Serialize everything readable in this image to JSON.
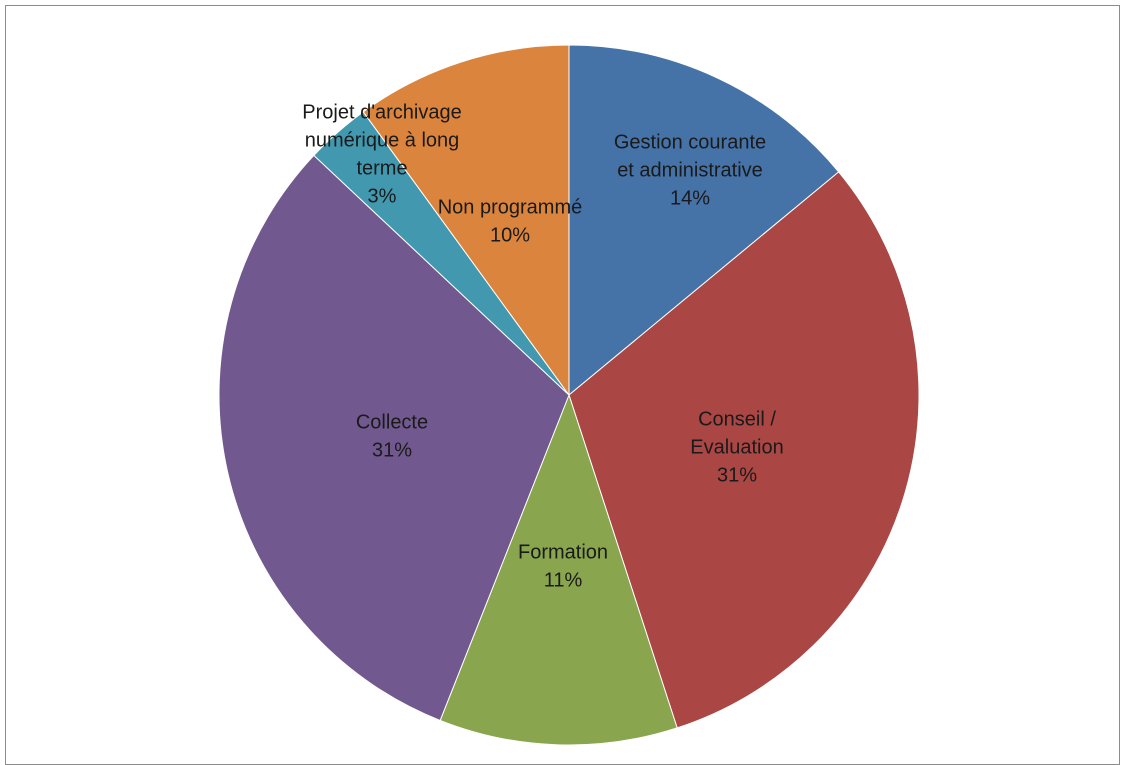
{
  "chart_data": {
    "type": "pie",
    "title": "",
    "slices": [
      {
        "label": [
          "Gestion courante",
          "et administrative"
        ],
        "name": "Gestion courante et administrative",
        "value": 14,
        "display": "14%",
        "color": "#4572A7"
      },
      {
        "label": [
          "Conseil /",
          "Evaluation"
        ],
        "name": "Conseil / Evaluation",
        "value": 31,
        "display": "31%",
        "color": "#AA4643"
      },
      {
        "label": [
          "Formation"
        ],
        "name": "Formation",
        "value": 11,
        "display": "11%",
        "color": "#89A54E"
      },
      {
        "label": [
          "Collecte"
        ],
        "name": "Collecte",
        "value": 31,
        "display": "31%",
        "color": "#71588F"
      },
      {
        "label": [
          "Projet d'archivage",
          "numérique à long",
          "terme"
        ],
        "name": "Projet d'archivage numérique à long terme",
        "value": 3,
        "display": "3%",
        "color": "#4198AF"
      },
      {
        "label": [
          "Non programmé"
        ],
        "name": "Non programmé",
        "value": 10,
        "display": "10%",
        "color": "#DB843D"
      }
    ],
    "start_angle": "12 o'clock",
    "direction": "clockwise",
    "legend": "none",
    "data_labels": "on slices"
  }
}
